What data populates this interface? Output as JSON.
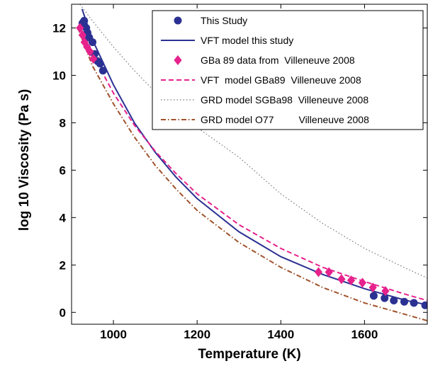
{
  "chart_data": {
    "type": "scatter",
    "title": "",
    "xlabel": "Temperature (K)",
    "ylabel": "log 10 Viscosity (Pa s)",
    "xlim": [
      900,
      1750
    ],
    "ylim": [
      -0.5,
      13
    ],
    "xticks": [
      1000,
      1200,
      1400,
      1600
    ],
    "yticks": [
      0,
      2,
      4,
      6,
      8,
      10,
      12
    ],
    "grid": false,
    "legend_position": "top-right",
    "series": [
      {
        "name": "This Study",
        "kind": "markers",
        "marker": "circle",
        "color": "#2b3192",
        "points": [
          [
            926,
            12.2
          ],
          [
            930,
            12.3
          ],
          [
            935,
            12.0
          ],
          [
            938,
            11.8
          ],
          [
            942,
            11.6
          ],
          [
            950,
            11.4
          ],
          [
            955,
            10.9
          ],
          [
            962,
            10.6
          ],
          [
            968,
            10.5
          ],
          [
            975,
            10.2
          ],
          [
            1622,
            0.7
          ],
          [
            1648,
            0.6
          ],
          [
            1670,
            0.5
          ],
          [
            1695,
            0.45
          ],
          [
            1718,
            0.4
          ],
          [
            1745,
            0.3
          ]
        ]
      },
      {
        "name": "VFT model this study",
        "kind": "line",
        "dash": "solid",
        "color": "#2b3192",
        "points": [
          [
            925,
            12.8
          ],
          [
            950,
            11.5
          ],
          [
            1000,
            9.6
          ],
          [
            1050,
            8.0
          ],
          [
            1100,
            6.75
          ],
          [
            1150,
            5.7
          ],
          [
            1200,
            4.8
          ],
          [
            1300,
            3.4
          ],
          [
            1400,
            2.35
          ],
          [
            1500,
            1.6
          ],
          [
            1600,
            1.0
          ],
          [
            1700,
            0.5
          ],
          [
            1750,
            0.32
          ]
        ]
      },
      {
        "name": "GBa 89 data from  Villeneuve 2008",
        "kind": "markers",
        "marker": "diamond",
        "color": "#e6228c",
        "points": [
          [
            920,
            12.0
          ],
          [
            926,
            11.7
          ],
          [
            931,
            11.4
          ],
          [
            937,
            11.2
          ],
          [
            944,
            11.0
          ],
          [
            952,
            10.7
          ],
          [
            1490,
            1.7
          ],
          [
            1515,
            1.7
          ],
          [
            1545,
            1.4
          ],
          [
            1568,
            1.35
          ],
          [
            1595,
            1.25
          ],
          [
            1620,
            1.05
          ],
          [
            1650,
            0.9
          ]
        ]
      },
      {
        "name": "VFT  model GBa89  Villeneuve 2008",
        "kind": "line",
        "dash": "dashed",
        "color": "#e6228c",
        "points": [
          [
            920,
            12.0
          ],
          [
            950,
            10.9
          ],
          [
            1000,
            9.25
          ],
          [
            1050,
            7.9
          ],
          [
            1100,
            6.8
          ],
          [
            1150,
            5.85
          ],
          [
            1200,
            5.0
          ],
          [
            1300,
            3.7
          ],
          [
            1400,
            2.7
          ],
          [
            1500,
            1.9
          ],
          [
            1600,
            1.3
          ],
          [
            1700,
            0.75
          ],
          [
            1750,
            0.5
          ]
        ]
      },
      {
        "name": "GRD model SGBa98  Villeneuve 2008",
        "kind": "line",
        "dash": "dotted",
        "color": "#777777",
        "points": [
          [
            920,
            13.0
          ],
          [
            950,
            12.3
          ],
          [
            1000,
            11.2
          ],
          [
            1050,
            10.2
          ],
          [
            1100,
            9.3
          ],
          [
            1150,
            8.5
          ],
          [
            1200,
            7.8
          ],
          [
            1300,
            6.55
          ],
          [
            1400,
            5.0
          ],
          [
            1500,
            3.75
          ],
          [
            1600,
            2.7
          ],
          [
            1700,
            1.85
          ],
          [
            1750,
            1.45
          ]
        ]
      },
      {
        "name": "GRD model O77         Villeneuve 2008",
        "kind": "line",
        "dash": "dashdot",
        "color": "#a0522d",
        "points": [
          [
            915,
            12.0
          ],
          [
            950,
            10.4
          ],
          [
            1000,
            8.8
          ],
          [
            1050,
            7.4
          ],
          [
            1100,
            6.2
          ],
          [
            1150,
            5.2
          ],
          [
            1200,
            4.3
          ],
          [
            1300,
            2.95
          ],
          [
            1400,
            1.9
          ],
          [
            1500,
            1.05
          ],
          [
            1600,
            0.4
          ],
          [
            1700,
            -0.1
          ],
          [
            1750,
            -0.35
          ]
        ]
      }
    ]
  }
}
